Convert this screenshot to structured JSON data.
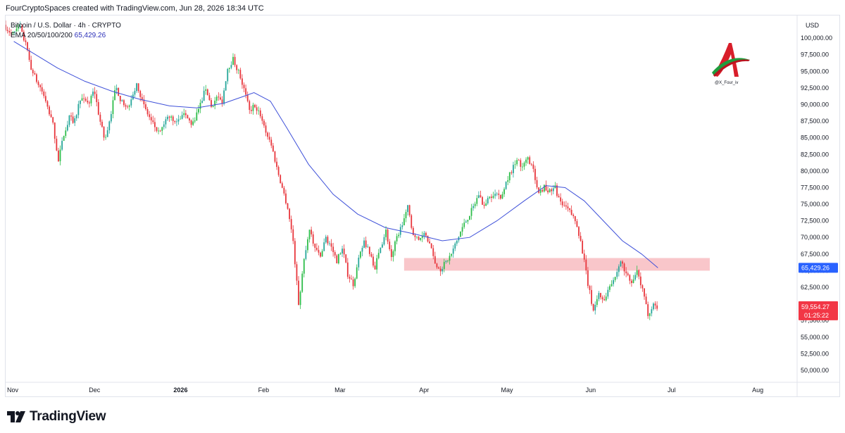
{
  "header": {
    "credit": "FourCryptoSpaces created with TradingView.com, Jun 28, 2026 18:34 UTC"
  },
  "legend": {
    "symbol": "Bitcoin / U.S. Dollar · 4h · CRYPTO",
    "indicator": "EMA 20/50/100/200",
    "ema_value": "65,429.26"
  },
  "brand": {
    "watermark": "@X_Four_iv",
    "logo_icon": "red-green-a-logo-icon"
  },
  "footer": {
    "logo_text": "TradingView",
    "logo_icon": "tradingview-logo-icon"
  },
  "colors": {
    "up": "#26a69a",
    "up_bright": "#2ebd4a",
    "down": "#e8363c",
    "ema": "#3f51d9",
    "zone": "#f8c0c4",
    "price_tag": "#f23645",
    "ema_tag": "#2962ff"
  },
  "chart_data": {
    "type": "candlestick",
    "title": "",
    "currency_label": "USD",
    "y_ticks": [
      "100,000.00",
      "97,500.00",
      "95,000.00",
      "92,500.00",
      "90,000.00",
      "87,500.00",
      "85,000.00",
      "82,500.00",
      "80,000.00",
      "77,500.00",
      "75,000.00",
      "72,500.00",
      "70,000.00",
      "67,500.00",
      "65,000.00",
      "62,500.00",
      "60,000.00",
      "57,500.00",
      "55,000.00",
      "52,500.00",
      "50,000.00"
    ],
    "y_tick_values": [
      100000,
      97500,
      95000,
      92500,
      90000,
      87500,
      85000,
      82500,
      80000,
      77500,
      75000,
      72500,
      70000,
      67500,
      65000,
      62500,
      60000,
      57500,
      55000,
      52500,
      50000
    ],
    "ylim": [
      48200,
      103400
    ],
    "x_tick_labels": [
      "Nov",
      "Dec",
      "2026",
      "Feb",
      "Mar",
      "Apr",
      "May",
      "Jun",
      "Jul",
      "Aug"
    ],
    "x_tick_dates": [
      "2025-11-01",
      "2025-12-01",
      "2026-01-01",
      "2026-02-01",
      "2026-03-01",
      "2026-04-01",
      "2026-05-01",
      "2026-06-01",
      "2026-07-01",
      "2026-08-01"
    ],
    "x_tick_bold": [
      false,
      false,
      true,
      false,
      false,
      false,
      false,
      false,
      false,
      false
    ],
    "xlim": [
      "2025-11-01",
      "2026-08-18"
    ],
    "price_path": [
      [
        "2025-11-01",
        102000
      ],
      [
        "2025-11-04",
        100500
      ],
      [
        "2025-11-07",
        101500
      ],
      [
        "2025-11-09",
        99000
      ],
      [
        "2025-11-11",
        95500
      ],
      [
        "2025-11-13",
        93500
      ],
      [
        "2025-11-15",
        92000
      ],
      [
        "2025-11-17",
        89500
      ],
      [
        "2025-11-19",
        87000
      ],
      [
        "2025-11-21",
        81500
      ],
      [
        "2025-11-23",
        85500
      ],
      [
        "2025-11-25",
        88000
      ],
      [
        "2025-11-27",
        87500
      ],
      [
        "2025-11-29",
        91000
      ],
      [
        "2025-12-02",
        90000
      ],
      [
        "2025-12-04",
        92500
      ],
      [
        "2025-12-06",
        88000
      ],
      [
        "2025-12-08",
        84500
      ],
      [
        "2025-12-10",
        88000
      ],
      [
        "2025-12-12",
        92800
      ],
      [
        "2025-12-14",
        90500
      ],
      [
        "2025-12-16",
        89000
      ],
      [
        "2025-12-18",
        91500
      ],
      [
        "2025-12-20",
        93000
      ],
      [
        "2025-12-22",
        90000
      ],
      [
        "2025-12-25",
        87500
      ],
      [
        "2025-12-28",
        85500
      ],
      [
        "2025-12-31",
        88000
      ],
      [
        "2026-01-03",
        87800
      ],
      [
        "2026-01-06",
        88500
      ],
      [
        "2026-01-09",
        87000
      ],
      [
        "2026-01-12",
        90000
      ],
      [
        "2026-01-14",
        92500
      ],
      [
        "2026-01-16",
        89800
      ],
      [
        "2026-01-18",
        91000
      ],
      [
        "2026-01-20",
        90500
      ],
      [
        "2026-01-22",
        95500
      ],
      [
        "2026-01-24",
        96800
      ],
      [
        "2026-01-26",
        95000
      ],
      [
        "2026-01-28",
        92300
      ],
      [
        "2026-01-30",
        89000
      ],
      [
        "2026-02-01",
        90000
      ],
      [
        "2026-02-03",
        88500
      ],
      [
        "2026-02-05",
        86000
      ],
      [
        "2026-02-07",
        84000
      ],
      [
        "2026-02-09",
        80500
      ],
      [
        "2026-02-11",
        77500
      ],
      [
        "2026-02-13",
        74500
      ],
      [
        "2026-02-15",
        69500
      ],
      [
        "2026-02-17",
        60000
      ],
      [
        "2026-02-19",
        66500
      ],
      [
        "2026-02-21",
        71000
      ],
      [
        "2026-02-23",
        68500
      ],
      [
        "2026-02-25",
        67000
      ],
      [
        "2026-02-27",
        70000
      ],
      [
        "2026-03-01",
        68500
      ],
      [
        "2026-03-03",
        66500
      ],
      [
        "2026-03-05",
        68500
      ],
      [
        "2026-03-07",
        64500
      ],
      [
        "2026-03-09",
        63000
      ],
      [
        "2026-03-11",
        66500
      ],
      [
        "2026-03-13",
        69500
      ],
      [
        "2026-03-15",
        67500
      ],
      [
        "2026-03-17",
        65500
      ],
      [
        "2026-03-19",
        68500
      ],
      [
        "2026-03-21",
        71000
      ],
      [
        "2026-03-23",
        67000
      ],
      [
        "2026-03-25",
        70000
      ],
      [
        "2026-03-27",
        72000
      ],
      [
        "2026-03-29",
        74500
      ],
      [
        "2026-03-31",
        70500
      ],
      [
        "2026-04-02",
        69500
      ],
      [
        "2026-04-04",
        71000
      ],
      [
        "2026-04-06",
        69000
      ],
      [
        "2026-04-08",
        66000
      ],
      [
        "2026-04-10",
        65200
      ],
      [
        "2026-04-12",
        66300
      ],
      [
        "2026-04-14",
        67500
      ],
      [
        "2026-04-16",
        69500
      ],
      [
        "2026-04-18",
        71500
      ],
      [
        "2026-04-20",
        73000
      ],
      [
        "2026-04-22",
        74500
      ],
      [
        "2026-04-24",
        76500
      ],
      [
        "2026-04-26",
        74800
      ],
      [
        "2026-04-28",
        76000
      ],
      [
        "2026-04-30",
        77000
      ],
      [
        "2026-05-02",
        75500
      ],
      [
        "2026-05-04",
        78500
      ],
      [
        "2026-05-06",
        80000
      ],
      [
        "2026-05-08",
        82000
      ],
      [
        "2026-05-10",
        80500
      ],
      [
        "2026-05-12",
        82000
      ],
      [
        "2026-05-14",
        80000
      ],
      [
        "2026-05-16",
        77000
      ],
      [
        "2026-05-18",
        77500
      ],
      [
        "2026-05-20",
        76800
      ],
      [
        "2026-05-22",
        77500
      ],
      [
        "2026-05-24",
        75000
      ],
      [
        "2026-05-26",
        74500
      ],
      [
        "2026-05-28",
        73500
      ],
      [
        "2026-05-30",
        72000
      ],
      [
        "2026-06-01",
        68000
      ],
      [
        "2026-06-03",
        63000
      ],
      [
        "2026-06-05",
        59000
      ],
      [
        "2026-06-07",
        61500
      ],
      [
        "2026-06-09",
        60500
      ],
      [
        "2026-06-11",
        63000
      ],
      [
        "2026-06-13",
        64000
      ],
      [
        "2026-06-15",
        66500
      ],
      [
        "2026-06-17",
        64500
      ],
      [
        "2026-06-19",
        63000
      ],
      [
        "2026-06-21",
        64800
      ],
      [
        "2026-06-23",
        62000
      ],
      [
        "2026-06-25",
        58500
      ],
      [
        "2026-06-27",
        60000
      ],
      [
        "2026-06-28",
        59554
      ]
    ],
    "ema_path": [
      [
        "2025-11-04",
        99500
      ],
      [
        "2025-11-12",
        97500
      ],
      [
        "2025-11-20",
        95500
      ],
      [
        "2025-11-30",
        93500
      ],
      [
        "2025-12-10",
        92000
      ],
      [
        "2025-12-20",
        90800
      ],
      [
        "2025-12-31",
        89800
      ],
      [
        "2026-01-10",
        89500
      ],
      [
        "2026-01-20",
        90200
      ],
      [
        "2026-01-27",
        91200
      ],
      [
        "2026-01-31",
        91800
      ],
      [
        "2026-02-06",
        90500
      ],
      [
        "2026-02-12",
        86500
      ],
      [
        "2026-02-20",
        81000
      ],
      [
        "2026-03-01",
        76500
      ],
      [
        "2026-03-10",
        73500
      ],
      [
        "2026-03-20",
        71500
      ],
      [
        "2026-03-31",
        70500
      ],
      [
        "2026-04-10",
        69500
      ],
      [
        "2026-04-20",
        70000
      ],
      [
        "2026-04-30",
        72500
      ],
      [
        "2026-05-10",
        75500
      ],
      [
        "2026-05-18",
        77800
      ],
      [
        "2026-05-25",
        77500
      ],
      [
        "2026-06-01",
        75500
      ],
      [
        "2026-06-08",
        72500
      ],
      [
        "2026-06-15",
        69500
      ],
      [
        "2026-06-22",
        67500
      ],
      [
        "2026-06-28",
        65429
      ]
    ],
    "zone": {
      "start": "2026-03-27",
      "end": "2026-07-17",
      "low": 65000,
      "high": 66900
    },
    "last_price": {
      "value": 59554.27,
      "label": "59,554.27",
      "countdown": "01:25:22"
    },
    "ema_last": {
      "value": 65429.26,
      "label": "65,429.26"
    }
  }
}
